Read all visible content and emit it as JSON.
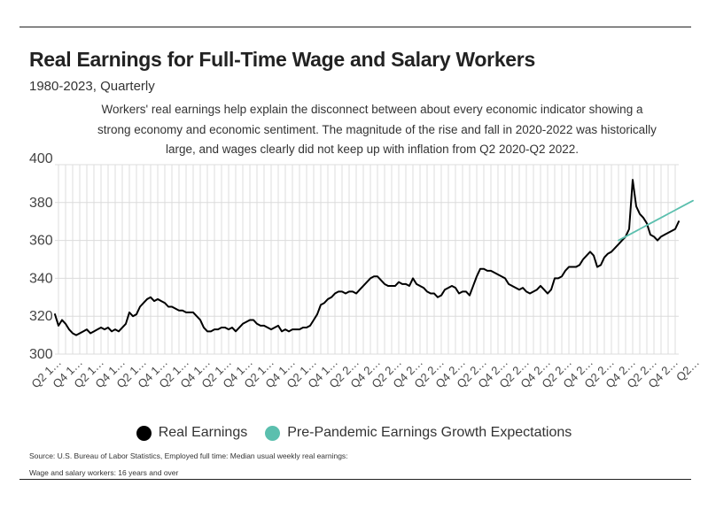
{
  "header": {
    "title": "Real Earnings for Full-Time Wage and Salary Workers",
    "subtitle": "1980-2023, Quarterly",
    "description_lines": [
      "Workers' real earnings help explain the disconnect between about every economic indicator showing a",
      "strong economy and economic sentiment. The magnitude of the rise and fall in 2020-2022 was historically",
      "large, and wages clearly did not keep up with inflation from Q2 2020-Q2 2022."
    ]
  },
  "legend": {
    "items": [
      {
        "label": "Real Earnings",
        "color": "#000000"
      },
      {
        "label": "Pre-Pandemic Earnings Growth Expectations",
        "color": "#5bbfae"
      }
    ]
  },
  "footer": {
    "source_line1": "Source:  U.S. Bureau of Labor Statistics, Employed full time: Median usual weekly real earnings:",
    "source_line2": "Wage and salary workers: 16 years and over"
  },
  "chart_data": {
    "type": "line",
    "title": "Real Earnings for Full-Time Wage and Salary Workers",
    "xlabel": "",
    "ylabel": "",
    "ylim": [
      300,
      400
    ],
    "yticks": [
      300,
      320,
      340,
      360,
      380,
      400
    ],
    "grid": true,
    "legend_position": "bottom",
    "x_tick_labels": [
      "Q2 1…",
      "Q4 1…",
      "Q2 1…",
      "Q4 1…",
      "Q2 1…",
      "Q4 1…",
      "Q2 1…",
      "Q4 1…",
      "Q2 1…",
      "Q4 1…",
      "Q2 1…",
      "Q4 1…",
      "Q2 1…",
      "Q4 1…",
      "Q2 2…",
      "Q4 2…",
      "Q2 2…",
      "Q4 2…",
      "Q2 2…",
      "Q4 2…",
      "Q2 2…",
      "Q4 2…",
      "Q2 2…",
      "Q4 2…",
      "Q2 2…",
      "Q4 2…",
      "Q2 2…",
      "Q4 2…",
      "Q2 2…",
      "Q4 2…",
      "Q2…"
    ],
    "series": [
      {
        "name": "Real Earnings",
        "color": "#000000",
        "start": "Q1 1980",
        "values": [
          321,
          315,
          318,
          316,
          313,
          311,
          310,
          311,
          312,
          313,
          311,
          312,
          313,
          314,
          313,
          314,
          312,
          313,
          312,
          314,
          316,
          322,
          320,
          321,
          325,
          327,
          329,
          330,
          328,
          329,
          328,
          327,
          325,
          325,
          324,
          323,
          323,
          322,
          322,
          322,
          320,
          318,
          314,
          312,
          312,
          313,
          313,
          314,
          314,
          313,
          314,
          312,
          314,
          316,
          317,
          318,
          318,
          316,
          315,
          315,
          314,
          313,
          314,
          315,
          312,
          313,
          312,
          313,
          313,
          313,
          314,
          314,
          315,
          318,
          321,
          326,
          327,
          329,
          330,
          332,
          333,
          333,
          332,
          333,
          333,
          332,
          334,
          336,
          338,
          340,
          341,
          341,
          339,
          337,
          336,
          336,
          336,
          338,
          337,
          337,
          336,
          340,
          337,
          336,
          335,
          333,
          332,
          332,
          330,
          331,
          334,
          335,
          336,
          335,
          332,
          333,
          333,
          331,
          336,
          341,
          345,
          345,
          344,
          344,
          343,
          342,
          341,
          340,
          337,
          336,
          335,
          334,
          335,
          333,
          332,
          333,
          334,
          336,
          334,
          332,
          334,
          340,
          340,
          341,
          344,
          346,
          346,
          346,
          347,
          350,
          352,
          354,
          352,
          346,
          347,
          351,
          353,
          354,
          356,
          358,
          360,
          362,
          366,
          392,
          378,
          374,
          372,
          369,
          363,
          362,
          360,
          362,
          363,
          364,
          365,
          366,
          370
        ]
      },
      {
        "name": "Pre-Pandemic Earnings Growth Expectations",
        "color": "#5bbfae",
        "start": "Q4 2019",
        "values": [
          360,
          361,
          362,
          363,
          364,
          365,
          366,
          367,
          368,
          369,
          370,
          371,
          372,
          373,
          374,
          375,
          376,
          377,
          378,
          379,
          380,
          381
        ]
      }
    ]
  }
}
